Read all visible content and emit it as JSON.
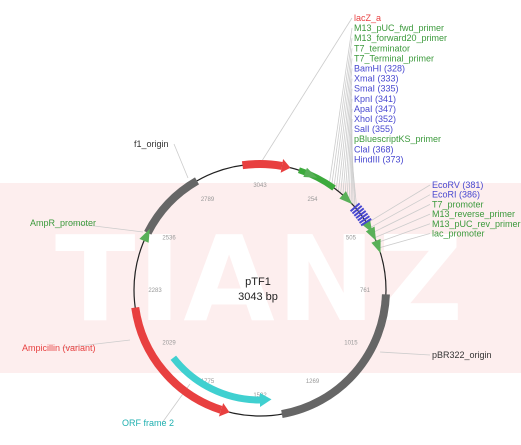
{
  "plasmid": {
    "name": "pTF1",
    "size_label": "3043 bp",
    "total_bp": 3043
  },
  "watermark": "TIANZ",
  "colors": {
    "backbone": "#222222",
    "feature_red": "#e84040",
    "feature_green": "#3caa3c",
    "feature_gray": "#666666",
    "feature_cyan": "#40d0d0",
    "primer_green": "#58b058",
    "site_blue": "#4848d0",
    "leader": "#cccccc",
    "watermark_band": "#fdeeee"
  },
  "ticks": [
    "3043",
    "254",
    "505",
    "761",
    "1015",
    "1269",
    "1522",
    "1775",
    "2029",
    "2283",
    "2536",
    "2789"
  ],
  "top_labels": [
    {
      "text": "lacZ_a",
      "color": "#e84040"
    },
    {
      "text": "M13_pUC_fwd_primer",
      "color": "#3c9a3c"
    },
    {
      "text": "M13_forward20_primer",
      "color": "#3c9a3c"
    },
    {
      "text": "T7_terminator",
      "color": "#3c9a3c"
    },
    {
      "text": "T7_Terminal_primer",
      "color": "#3c9a3c"
    },
    {
      "text": "BamHI (328)",
      "color": "#4848d0"
    },
    {
      "text": "XmaI (333)",
      "color": "#4848d0"
    },
    {
      "text": "SmaI (335)",
      "color": "#4848d0"
    },
    {
      "text": "KpnI (341)",
      "color": "#4848d0"
    },
    {
      "text": "ApaI (347)",
      "color": "#4848d0"
    },
    {
      "text": "XhoI (352)",
      "color": "#4848d0"
    },
    {
      "text": "SalI (355)",
      "color": "#4848d0"
    },
    {
      "text": "pBluescriptKS_primer",
      "color": "#3c9a3c"
    },
    {
      "text": "ClaI (368)",
      "color": "#4848d0"
    },
    {
      "text": "HindIII (373)",
      "color": "#4848d0"
    }
  ],
  "right_labels": [
    {
      "text": "EcoRV (381)",
      "color": "#4848d0"
    },
    {
      "text": "EcoRI (386)",
      "color": "#4848d0"
    },
    {
      "text": "T7_promoter",
      "color": "#3c9a3c"
    },
    {
      "text": "M13_reverse_primer",
      "color": "#3c9a3c"
    },
    {
      "text": "M13_pUC_rev_primer",
      "color": "#3c9a3c"
    },
    {
      "text": "lac_promoter",
      "color": "#3c9a3c"
    }
  ],
  "side_labels": {
    "f1_origin": {
      "text": "f1_origin",
      "color": "#333333"
    },
    "ampr_promoter": {
      "text": "AmpR_promoter",
      "color": "#3c9a3c"
    },
    "ampicillin": {
      "text": "Ampicillin (variant)",
      "color": "#e84040"
    },
    "orf": {
      "text": "ORF frame 2",
      "color": "#20b0b0"
    },
    "pbr322": {
      "text": "pBR322_origin",
      "color": "#333333"
    }
  }
}
